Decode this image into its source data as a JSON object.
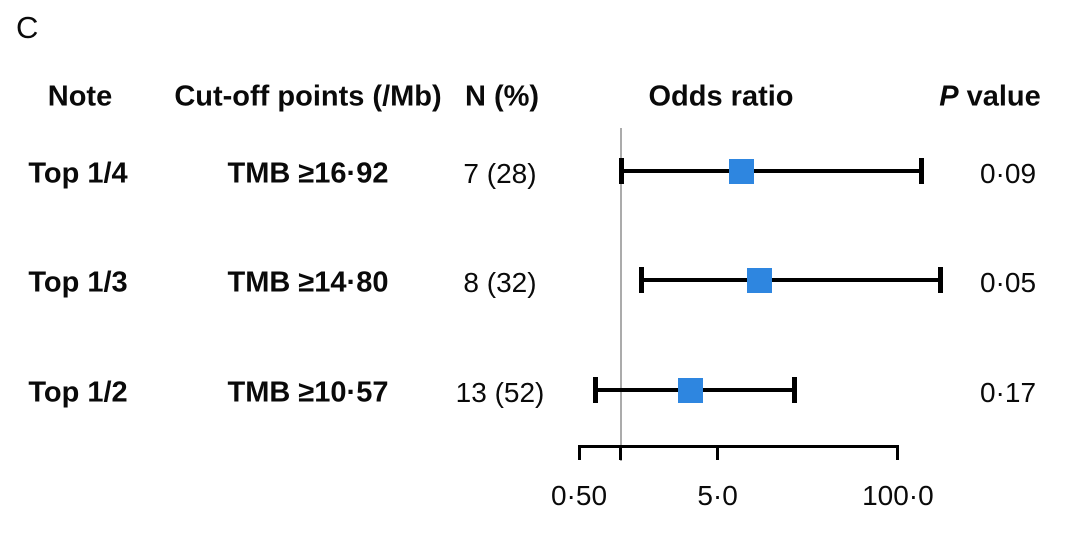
{
  "panel_label": "C",
  "header": {
    "note": "Note",
    "cutoff": "Cut-off points (/Mb)",
    "n": "N (%)",
    "odds": "Odds ratio",
    "p_italic": "P",
    "p_rest": " value"
  },
  "colors": {
    "marker_blue": "#2E86E0",
    "ci_black": "#000000",
    "reference_gray": "#ABABAB"
  },
  "chart_data": {
    "type": "scatter",
    "subtype": "forest-plot",
    "title": "Odds ratio",
    "x_scale": "log10",
    "x_axis": {
      "range": [
        0.5,
        100.0
      ],
      "ticks": [
        {
          "value": 0.5,
          "label": "0·50"
        },
        {
          "value": 1.0,
          "label": ""
        },
        {
          "value": 5.0,
          "label": "5·0"
        },
        {
          "value": 100.0,
          "label": "100·0"
        }
      ]
    },
    "reference_line": 1.0,
    "rows": [
      {
        "note": "Top 1/4",
        "cutoff": "TMB ≥16·92",
        "n_pct": "7 (28)",
        "or": 7.4,
        "ci_low": 1.0,
        "ci_high": 150,
        "p": "0·09"
      },
      {
        "note": "Top 1/3",
        "cutoff": "TMB ≥14·80",
        "n_pct": "8 (32)",
        "or": 10.0,
        "ci_low": 1.4,
        "ci_high": 205,
        "p": "0·05"
      },
      {
        "note": "Top 1/2",
        "cutoff": "TMB ≥10·57",
        "n_pct": "13 (52)",
        "or": 3.2,
        "ci_low": 0.65,
        "ci_high": 18,
        "p": "0·17"
      }
    ]
  }
}
